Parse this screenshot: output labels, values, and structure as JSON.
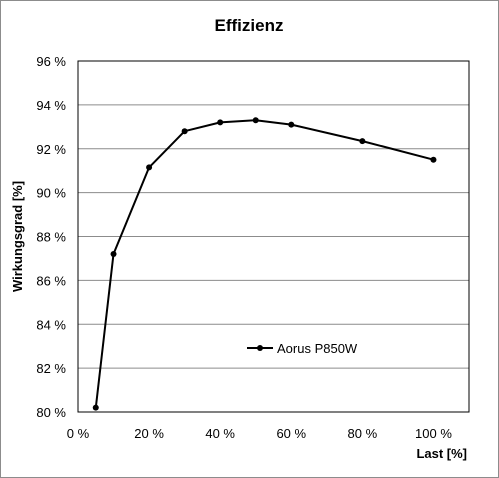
{
  "chart_data": {
    "type": "line",
    "title": "Effizienz",
    "xlabel": "Last [%]",
    "ylabel": "Wirkungsgrad [%]",
    "xlim": [
      0,
      110
    ],
    "ylim": [
      80,
      96
    ],
    "x_ticks": [
      "0 %",
      "20 %",
      "40 %",
      "60 %",
      "80 %",
      "100 %"
    ],
    "x_tick_values": [
      0,
      20,
      40,
      60,
      80,
      100
    ],
    "y_ticks": [
      "80 %",
      "82 %",
      "84 %",
      "86 %",
      "88 %",
      "90 %",
      "92 %",
      "94 %",
      "96 %"
    ],
    "y_tick_values": [
      80,
      82,
      84,
      86,
      88,
      90,
      92,
      94,
      96
    ],
    "grid": "horizontal",
    "legend_position": "center-right",
    "series": [
      {
        "name": "Aorus P850W",
        "color": "#000000",
        "x": [
          5,
          10,
          20,
          30,
          40,
          50,
          60,
          80,
          100
        ],
        "y": [
          80.2,
          87.2,
          91.15,
          92.8,
          93.2,
          93.3,
          93.1,
          92.35,
          91.5
        ]
      }
    ]
  }
}
